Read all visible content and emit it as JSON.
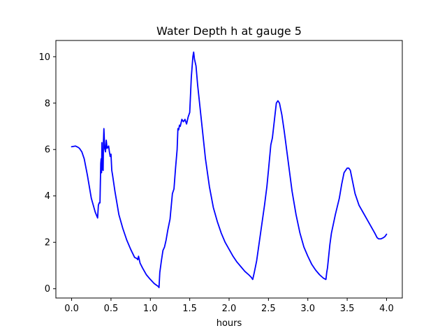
{
  "chart_data": {
    "type": "line",
    "title": "Water Depth h at gauge 5",
    "xlabel": "hours",
    "ylabel": "",
    "xlim": [
      -0.2,
      4.2
    ],
    "ylim": [
      -0.4,
      10.7
    ],
    "xticks": [
      0.0,
      0.5,
      1.0,
      1.5,
      2.0,
      2.5,
      3.0,
      3.5,
      4.0
    ],
    "xtick_labels": [
      "0.0",
      "0.5",
      "1.0",
      "1.5",
      "2.0",
      "2.5",
      "3.0",
      "3.5",
      "4.0"
    ],
    "yticks": [
      0,
      2,
      4,
      6,
      8,
      10
    ],
    "ytick_labels": [
      "0",
      "2",
      "4",
      "6",
      "8",
      "10"
    ],
    "grid": false,
    "series": [
      {
        "color": "#0000ff",
        "x": [
          0.0,
          0.05,
          0.08,
          0.1,
          0.13,
          0.16,
          0.2,
          0.25,
          0.3,
          0.33,
          0.34,
          0.35,
          0.36,
          0.37,
          0.375,
          0.38,
          0.385,
          0.39,
          0.4,
          0.405,
          0.41,
          0.42,
          0.43,
          0.44,
          0.45,
          0.46,
          0.47,
          0.48,
          0.49,
          0.5,
          0.51,
          0.52,
          0.55,
          0.6,
          0.65,
          0.7,
          0.75,
          0.8,
          0.83,
          0.84,
          0.85,
          0.87,
          0.9,
          0.95,
          1.0,
          1.05,
          1.1,
          1.11,
          1.12,
          1.14,
          1.16,
          1.18,
          1.2,
          1.22,
          1.25,
          1.28,
          1.3,
          1.32,
          1.34,
          1.35,
          1.36,
          1.37,
          1.38,
          1.4,
          1.42,
          1.44,
          1.46,
          1.48,
          1.5,
          1.52,
          1.54,
          1.55,
          1.56,
          1.58,
          1.6,
          1.65,
          1.7,
          1.75,
          1.8,
          1.85,
          1.9,
          1.95,
          2.0,
          2.05,
          2.1,
          2.15,
          2.2,
          2.25,
          2.28,
          2.29,
          2.3,
          2.32,
          2.35,
          2.4,
          2.45,
          2.48,
          2.5,
          2.53,
          2.55,
          2.58,
          2.6,
          2.62,
          2.64,
          2.67,
          2.7,
          2.75,
          2.8,
          2.85,
          2.9,
          2.95,
          3.0,
          3.05,
          3.1,
          3.15,
          3.2,
          3.23,
          3.24,
          3.25,
          3.28,
          3.3,
          3.35,
          3.4,
          3.43,
          3.46,
          3.48,
          3.5,
          3.52,
          3.54,
          3.57,
          3.6,
          3.65,
          3.7,
          3.75,
          3.8,
          3.85,
          3.88,
          3.9,
          3.93,
          3.96,
          3.98,
          4.0
        ],
        "y": [
          6.12,
          6.15,
          6.1,
          6.05,
          5.9,
          5.6,
          4.9,
          3.9,
          3.3,
          3.05,
          3.6,
          3.7,
          3.7,
          5.4,
          5.6,
          5.0,
          6.3,
          5.2,
          5.1,
          6.4,
          6.9,
          6.05,
          5.9,
          6.4,
          6.05,
          6.1,
          6.15,
          5.9,
          5.7,
          5.8,
          5.1,
          4.9,
          4.2,
          3.2,
          2.6,
          2.1,
          1.7,
          1.35,
          1.3,
          1.25,
          1.4,
          1.1,
          0.9,
          0.6,
          0.4,
          0.22,
          0.1,
          0.05,
          0.7,
          1.2,
          1.65,
          1.8,
          2.1,
          2.5,
          3.0,
          4.1,
          4.3,
          5.2,
          6.0,
          6.9,
          6.85,
          7.05,
          7.0,
          7.3,
          7.2,
          7.3,
          7.1,
          7.4,
          7.6,
          9.1,
          10.0,
          10.2,
          9.9,
          9.6,
          8.8,
          7.2,
          5.6,
          4.4,
          3.5,
          2.9,
          2.4,
          2.0,
          1.7,
          1.4,
          1.15,
          0.95,
          0.75,
          0.6,
          0.5,
          0.45,
          0.4,
          0.7,
          1.2,
          2.4,
          3.6,
          4.4,
          5.1,
          6.2,
          6.5,
          7.4,
          8.0,
          8.1,
          8.0,
          7.5,
          6.8,
          5.5,
          4.2,
          3.2,
          2.4,
          1.8,
          1.4,
          1.05,
          0.8,
          0.6,
          0.45,
          0.4,
          0.7,
          0.9,
          1.9,
          2.4,
          3.2,
          3.9,
          4.5,
          5.0,
          5.1,
          5.2,
          5.2,
          5.1,
          4.6,
          4.1,
          3.6,
          3.3,
          3.0,
          2.7,
          2.4,
          2.2,
          2.15,
          2.15,
          2.2,
          2.25,
          2.35
        ]
      }
    ]
  }
}
